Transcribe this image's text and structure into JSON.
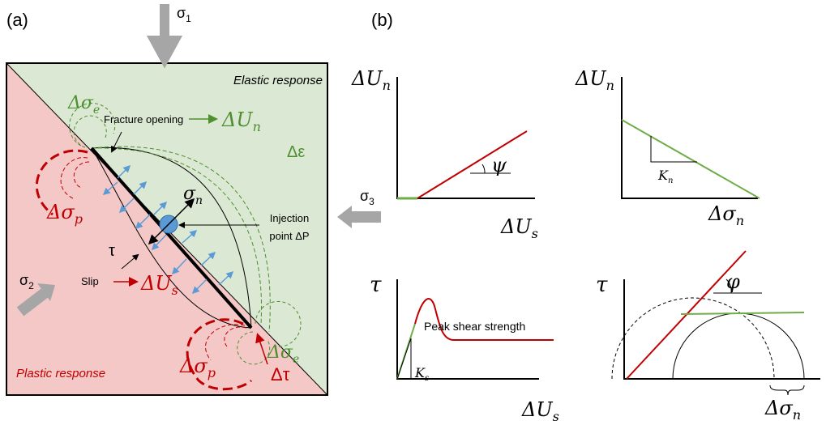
{
  "panel_a": {
    "label": {
      "text": "(a)"
    },
    "sigma1": {
      "text": "σ",
      "sub": "1"
    },
    "sigma2": {
      "text": "σ",
      "sub": "2"
    },
    "sigma3": {
      "text": "σ",
      "sub": "3"
    },
    "elastic_response": {
      "text": "Elastic response"
    },
    "plastic_response": {
      "text": "Plastic response"
    },
    "fracture_opening": {
      "text": "Fracture opening"
    },
    "delta_un": {
      "text": "ΔU",
      "sub": "n"
    },
    "delta_epsilon": {
      "text": "Δε"
    },
    "delta_sigma_e": [
      {
        "text": "Δσ",
        "sub": "e"
      },
      {
        "text": "Δσ",
        "sub": "e"
      }
    ],
    "delta_sigma_p": [
      {
        "text": "Δσ",
        "sub": "p"
      },
      {
        "text": "Δσ",
        "sub": "p"
      }
    ],
    "sigma_n": {
      "text": "σ",
      "sub": "n"
    },
    "injection_point": [
      {
        "text": "Injection"
      },
      {
        "text": "point ΔP"
      }
    ],
    "tau": {
      "text": "τ"
    },
    "slip": {
      "text": "Slip"
    },
    "delta_us": {
      "text": "ΔU",
      "sub": "s"
    },
    "delta_tau": {
      "text": "Δτ"
    }
  },
  "panel_b": {
    "label": {
      "text": "(b)"
    },
    "plots": [
      {
        "y_label": {
          "text": "ΔU",
          "sub": "n"
        },
        "x_label": {
          "text": "ΔU",
          "sub": "s"
        },
        "annotations": [
          {
            "text": "ψ"
          }
        ]
      },
      {
        "y_label": {
          "text": "ΔU",
          "sub": "n"
        },
        "x_label": {
          "text": "Δσ",
          "sub": "n"
        },
        "annotations": [
          {
            "text": "K",
            "sub": "n"
          }
        ]
      },
      {
        "y_label": {
          "text": "τ"
        },
        "x_label": {
          "text": "ΔU",
          "sub": "s"
        },
        "annotations": [
          {
            "text": "Peak shear strength"
          },
          {
            "text": "K",
            "sub": "s"
          }
        ]
      },
      {
        "y_label": {
          "text": "τ"
        },
        "x_label": {
          "text": "Δσ",
          "sub": "n"
        },
        "annotations": [
          {
            "text": "φ"
          }
        ]
      }
    ]
  }
}
